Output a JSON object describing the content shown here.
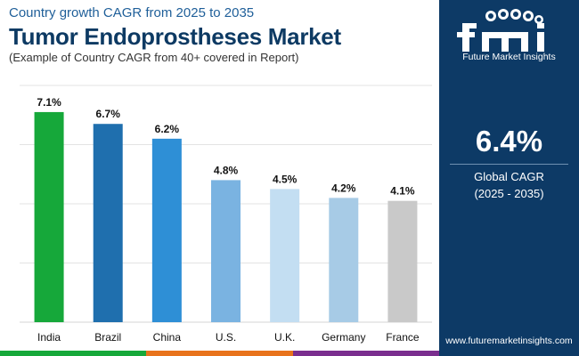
{
  "header": {
    "kicker": "Country growth CAGR from 2025 to 2035",
    "title": "Tumor Endoprostheses Market",
    "subtitle": "(Example of Country CAGR from 40+ covered in Report)"
  },
  "chart_data": {
    "type": "bar",
    "title": "Tumor Endoprostheses Market",
    "categories": [
      "India",
      "Brazil",
      "China",
      "U.S.",
      "U.K.",
      "Germany",
      "France"
    ],
    "values": [
      7.1,
      6.7,
      6.2,
      4.8,
      4.5,
      4.2,
      4.1
    ],
    "value_labels": [
      "7.1%",
      "6.7%",
      "6.2%",
      "4.8%",
      "4.5%",
      "4.2%",
      "4.1%"
    ],
    "colors": [
      "#16a83a",
      "#1f6fae",
      "#2e8fd6",
      "#7ab3e1",
      "#c3def2",
      "#a7cbe6",
      "#c9c9c9"
    ],
    "ylim": [
      0,
      8
    ],
    "grid": true
  },
  "sidebar": {
    "logo_text": "fmi",
    "logo_caption": "Future Market Insights",
    "stat_value": "6.4%",
    "stat_label_line1": "Global CAGR",
    "stat_label_line2": "(2025 - 2035)",
    "url": "www.futuremarketinsights.com"
  },
  "colors": {
    "panel_bg": "#0d3a66",
    "title": "#0d3a63",
    "kicker": "#1f5f99",
    "strip": [
      "#16a83a",
      "#e8731c",
      "#7a2e8e",
      "#0d3a66"
    ]
  }
}
